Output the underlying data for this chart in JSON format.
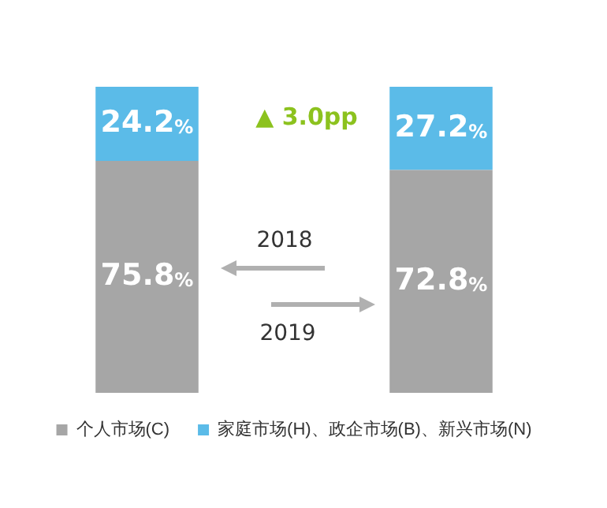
{
  "chart_data": {
    "type": "bar",
    "stacked": true,
    "categories": [
      null,
      null
    ],
    "series": [
      {
        "name": "个人市场(C)",
        "color": "#a6a6a6",
        "values": [
          75.8,
          72.8
        ],
        "value_labels": [
          "75.8%",
          "72.8%"
        ]
      },
      {
        "name": "家庭市场(H)、政企市场(B)、新兴市场(N)",
        "color": "#5bbbe8",
        "values": [
          24.2,
          27.2
        ],
        "value_labels": [
          "24.2%",
          "27.2%"
        ]
      }
    ],
    "annotations": [
      "▲ 3.0pp",
      "2018",
      "2019"
    ],
    "legend": "bottom",
    "tick_labels": false
  }
}
